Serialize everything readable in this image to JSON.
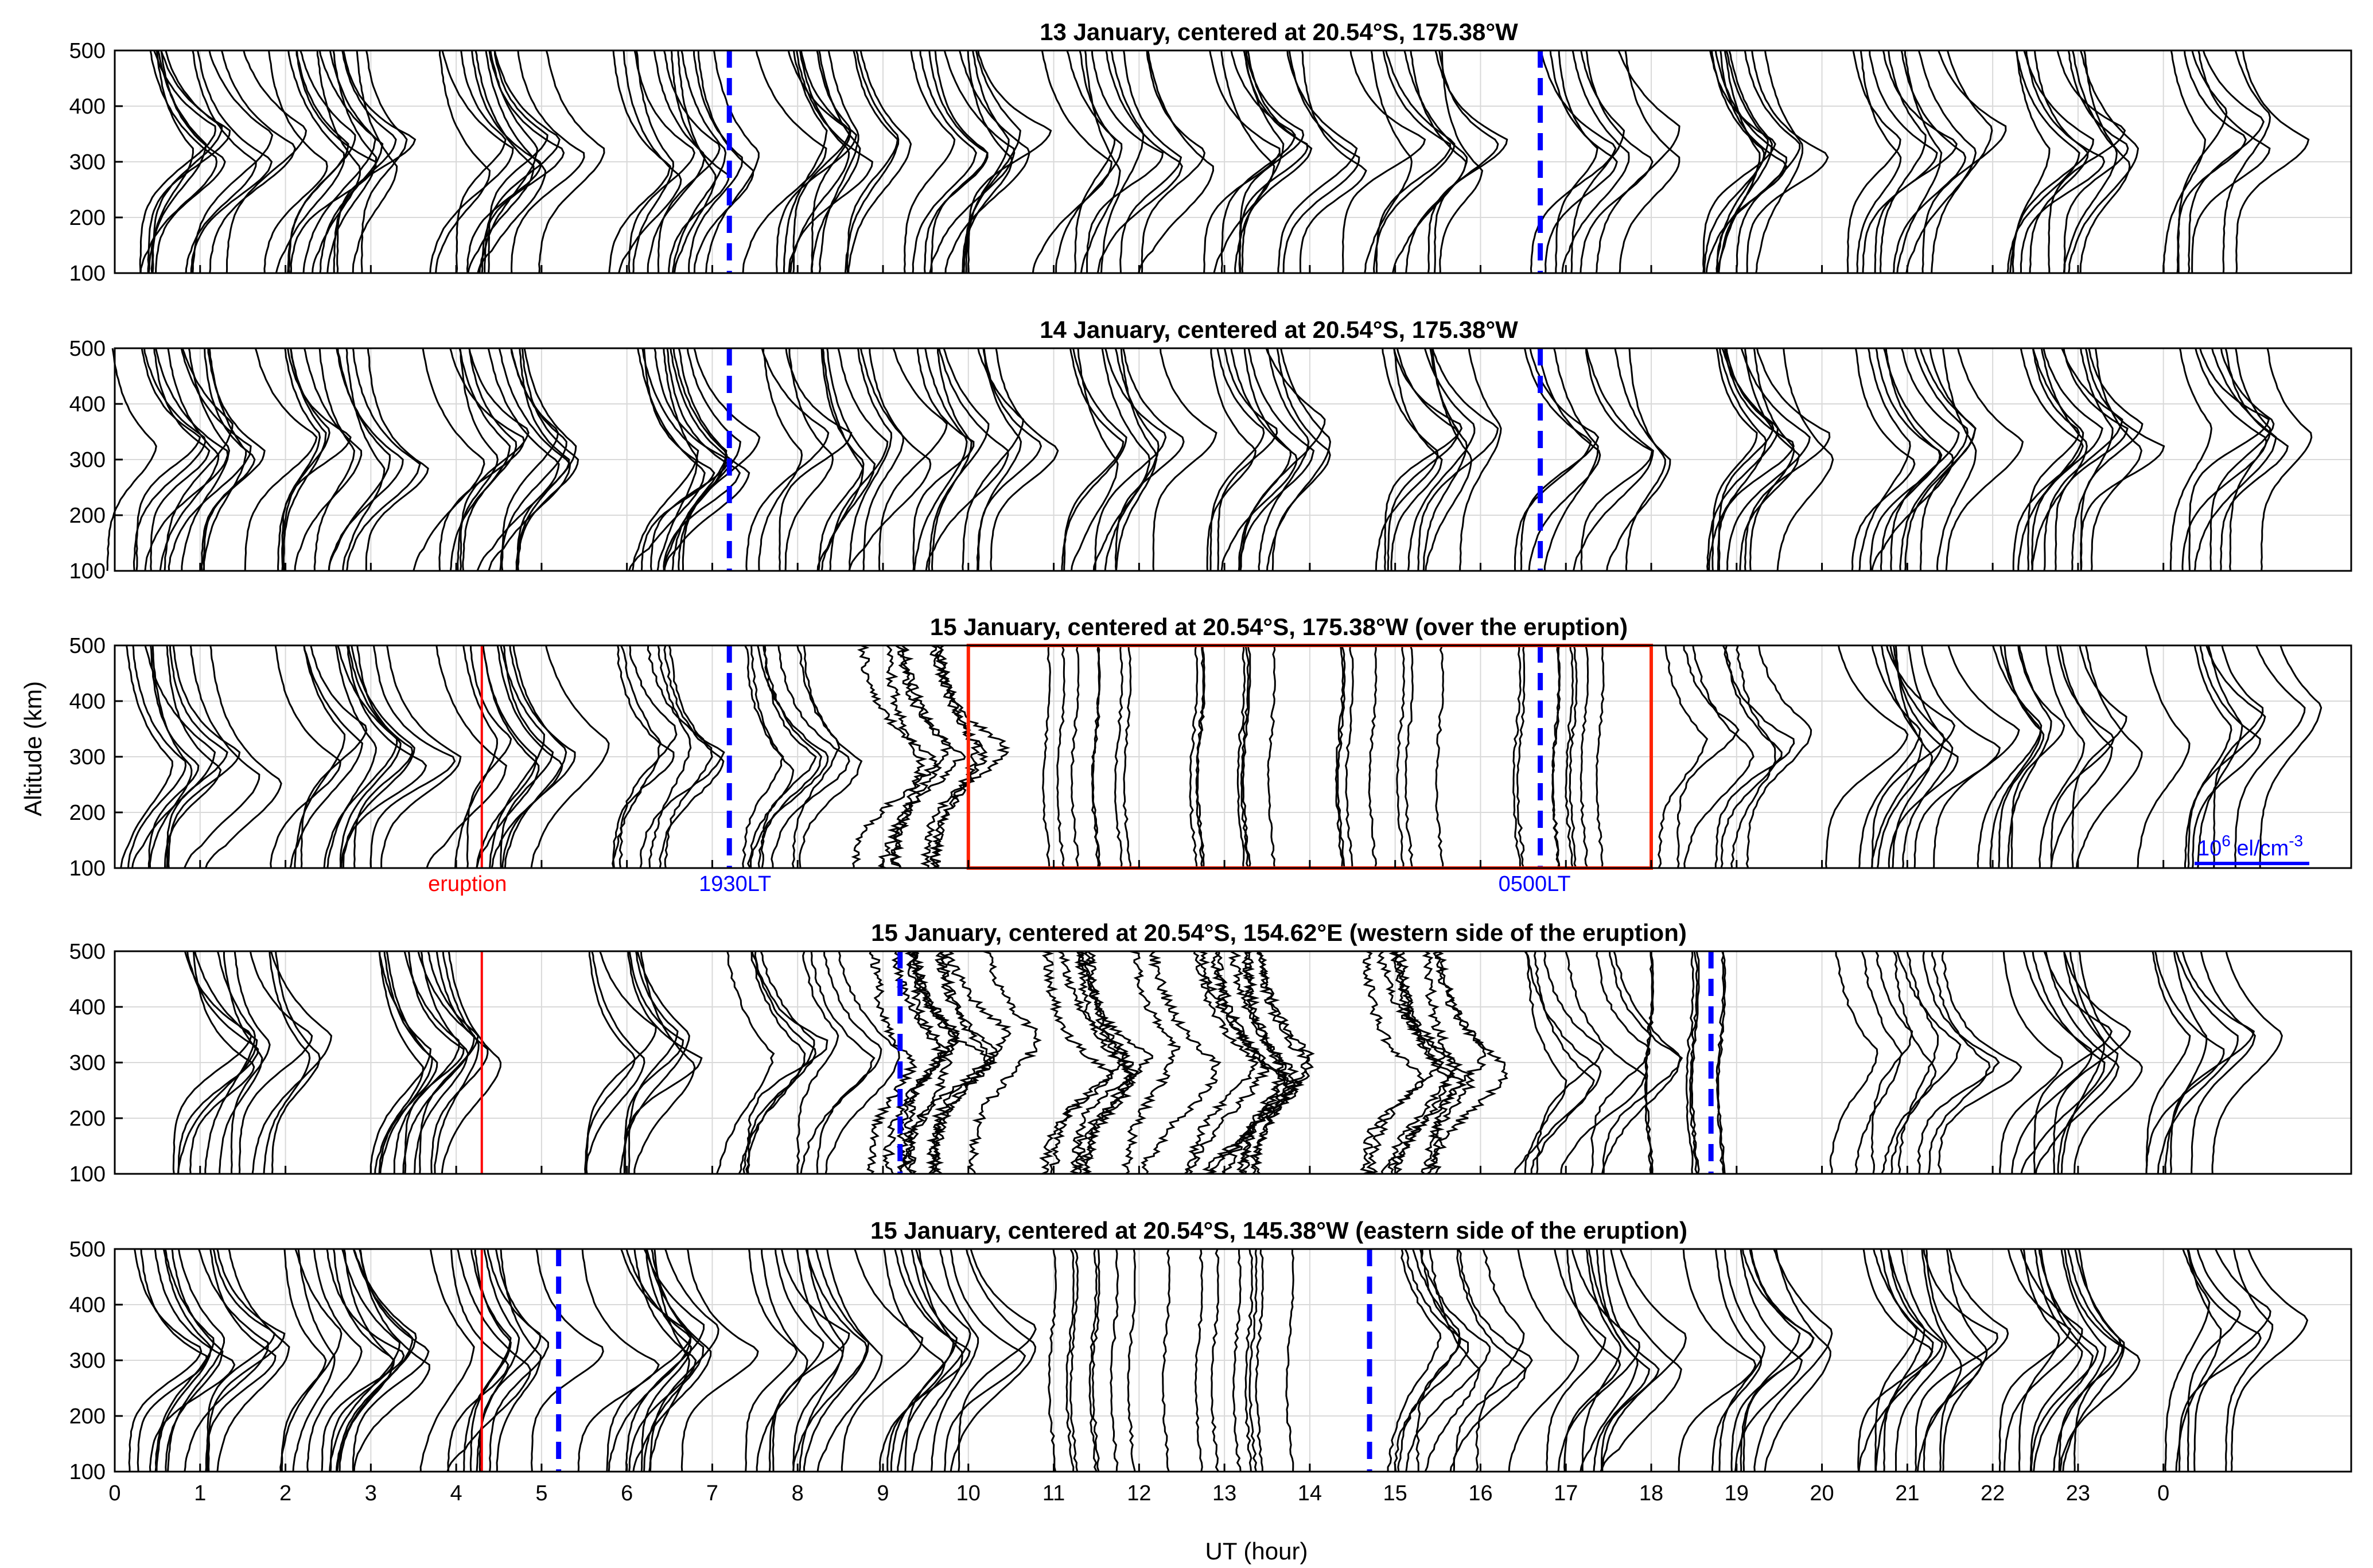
{
  "colors": {
    "profile": "#000000",
    "eruption_line": "#ff0000",
    "localtime_marker": "#0000ff",
    "highlight_box": "#ff2200",
    "grid": "#d9d9d9"
  },
  "chart_data": {
    "type": "line",
    "ylabel": "Altitude (km)",
    "xlabel": "UT (hour)",
    "ylim": [
      100,
      500
    ],
    "xlim": [
      0,
      26.2
    ],
    "yticks": [
      "100",
      "200",
      "300",
      "400",
      "500"
    ],
    "xticks": [
      {
        "x": 0,
        "label": "0"
      },
      {
        "x": 1,
        "label": "1"
      },
      {
        "x": 2,
        "label": "2"
      },
      {
        "x": 3,
        "label": "3"
      },
      {
        "x": 4,
        "label": "4"
      },
      {
        "x": 5,
        "label": "5"
      },
      {
        "x": 6,
        "label": "6"
      },
      {
        "x": 7,
        "label": "7"
      },
      {
        "x": 8,
        "label": "8"
      },
      {
        "x": 9,
        "label": "9"
      },
      {
        "x": 10,
        "label": "10"
      },
      {
        "x": 11,
        "label": "11"
      },
      {
        "x": 12,
        "label": "12"
      },
      {
        "x": 13,
        "label": "13"
      },
      {
        "x": 14,
        "label": "14"
      },
      {
        "x": 15,
        "label": "15"
      },
      {
        "x": 16,
        "label": "16"
      },
      {
        "x": 17,
        "label": "17"
      },
      {
        "x": 18,
        "label": "18"
      },
      {
        "x": 19,
        "label": "19"
      },
      {
        "x": 20,
        "label": "20"
      },
      {
        "x": 21,
        "label": "21"
      },
      {
        "x": 22,
        "label": "22"
      },
      {
        "x": 23,
        "label": "23"
      },
      {
        "x": 24,
        "label": "0"
      }
    ],
    "grid": true,
    "profile_scale_label": {
      "base": "10",
      "exp": "6",
      "rest": " el/cm",
      "unit_exp": "-3"
    },
    "panels": [
      {
        "title": "13 January, centered at 20.54°S, 175.38°W",
        "blue_markers": [
          7.2,
          16.7
        ],
        "groups": [
          {
            "x": 0.1,
            "n": 12,
            "peak": 330
          },
          {
            "x": 1.8,
            "n": 13,
            "peak": 320
          },
          {
            "x": 3.8,
            "n": 12,
            "peak": 320
          },
          {
            "x": 5.9,
            "n": 12,
            "peak": 300
          },
          {
            "x": 7.6,
            "n": 12,
            "peak": 330
          },
          {
            "x": 9.2,
            "n": 10,
            "peak": 330
          },
          {
            "x": 11.0,
            "n": 10,
            "peak": 320
          },
          {
            "x": 12.7,
            "n": 10,
            "peak": 320
          },
          {
            "x": 14.6,
            "n": 9,
            "peak": 310
          },
          {
            "x": 16.6,
            "n": 8,
            "peak": 330
          },
          {
            "x": 18.4,
            "n": 10,
            "peak": 330
          },
          {
            "x": 20.4,
            "n": 10,
            "peak": 340
          },
          {
            "x": 22.2,
            "n": 10,
            "peak": 330
          },
          {
            "x": 24.0,
            "n": 7,
            "peak": 360
          }
        ]
      },
      {
        "title": "14 January, centered at 20.54°S, 175.38°W",
        "blue_markers": [
          7.2,
          16.7
        ],
        "groups": [
          {
            "x": 0.1,
            "n": 12,
            "peak": 340
          },
          {
            "x": 1.8,
            "n": 12,
            "peak": 320
          },
          {
            "x": 3.8,
            "n": 13,
            "peak": 320
          },
          {
            "x": 5.9,
            "n": 11,
            "peak": 310
          },
          {
            "x": 7.6,
            "n": 11,
            "peak": 320
          },
          {
            "x": 9.2,
            "n": 10,
            "peak": 340
          },
          {
            "x": 11.0,
            "n": 9,
            "peak": 330
          },
          {
            "x": 12.7,
            "n": 10,
            "peak": 340
          },
          {
            "x": 14.6,
            "n": 9,
            "peak": 330
          },
          {
            "x": 16.6,
            "n": 8,
            "peak": 330
          },
          {
            "x": 18.4,
            "n": 10,
            "peak": 330
          },
          {
            "x": 20.4,
            "n": 11,
            "peak": 330
          },
          {
            "x": 22.2,
            "n": 11,
            "peak": 340
          },
          {
            "x": 24.0,
            "n": 8,
            "peak": 360
          }
        ]
      },
      {
        "title": "15 January, centered at 20.54°S, 175.38°W (over the eruption)",
        "blue_markers": [
          7.2,
          16.7
        ],
        "eruption": 4.3,
        "box": {
          "x0": 10.0,
          "x1": 18.0
        },
        "labels": {
          "eruption": "eruption",
          "lt_a": "1930LT",
          "lt_b": "0500LT"
        },
        "groups": [
          {
            "x": 0.1,
            "n": 10,
            "peak": 290
          },
          {
            "x": 2.0,
            "n": 12,
            "peak": 320
          },
          {
            "x": 3.9,
            "n": 11,
            "peak": 310
          },
          {
            "x": 5.7,
            "n": 7,
            "peak": 320,
            "kind": "mixed"
          },
          {
            "x": 7.2,
            "n": 8,
            "peak": 300,
            "kind": "mixed"
          },
          {
            "x": 8.8,
            "n": 7,
            "peak": 320,
            "kind": "noisy"
          },
          {
            "x": 10.9,
            "n": 7,
            "peak": 300,
            "kind": "flat"
          },
          {
            "x": 12.6,
            "n": 7,
            "peak": 300,
            "kind": "flat"
          },
          {
            "x": 14.4,
            "n": 7,
            "peak": 300,
            "kind": "flat"
          },
          {
            "x": 16.5,
            "n": 8,
            "peak": 300,
            "kind": "flat"
          },
          {
            "x": 18.2,
            "n": 7,
            "peak": 320,
            "kind": "mixed"
          },
          {
            "x": 20.3,
            "n": 10,
            "peak": 330
          },
          {
            "x": 22.1,
            "n": 10,
            "peak": 340
          },
          {
            "x": 24.0,
            "n": 8,
            "peak": 360
          }
        ]
      },
      {
        "title": "15 January, centered at 20.54°S, 154.62°E (western side of the eruption)",
        "blue_markers": [
          9.2,
          18.7
        ],
        "eruption": 4.3,
        "groups": [
          {
            "x": 0.8,
            "n": 11,
            "peak": 330
          },
          {
            "x": 3.0,
            "n": 12,
            "peak": 320
          },
          {
            "x": 5.4,
            "n": 8,
            "peak": 330
          },
          {
            "x": 7.2,
            "n": 9,
            "peak": 320,
            "kind": "mixed"
          },
          {
            "x": 8.9,
            "n": 10,
            "peak": 330,
            "kind": "noisy"
          },
          {
            "x": 11.0,
            "n": 8,
            "peak": 300,
            "kind": "noisy"
          },
          {
            "x": 12.6,
            "n": 9,
            "peak": 300,
            "kind": "noisy"
          },
          {
            "x": 14.6,
            "n": 8,
            "peak": 300,
            "kind": "noisy"
          },
          {
            "x": 16.5,
            "n": 8,
            "peak": 300,
            "kind": "mixed"
          },
          {
            "x": 18.0,
            "n": 7,
            "peak": 300,
            "kind": "flat"
          },
          {
            "x": 20.3,
            "n": 9,
            "peak": 320,
            "kind": "mixed"
          },
          {
            "x": 22.1,
            "n": 9,
            "peak": 330
          },
          {
            "x": 23.6,
            "n": 7,
            "peak": 350
          }
        ]
      },
      {
        "title": "15 January, centered at 20.54°S, 145.38°W (eastern side of the eruption)",
        "blue_markers": [
          5.2,
          14.7
        ],
        "eruption": 4.3,
        "groups": [
          {
            "x": 0.2,
            "n": 12,
            "peak": 330
          },
          {
            "x": 2.0,
            "n": 12,
            "peak": 320
          },
          {
            "x": 3.8,
            "n": 10,
            "peak": 320
          },
          {
            "x": 5.6,
            "n": 11,
            "peak": 330
          },
          {
            "x": 7.5,
            "n": 10,
            "peak": 320
          },
          {
            "x": 9.0,
            "n": 10,
            "peak": 330
          },
          {
            "x": 11.0,
            "n": 7,
            "peak": 300,
            "kind": "flat"
          },
          {
            "x": 12.6,
            "n": 8,
            "peak": 300,
            "kind": "flat"
          },
          {
            "x": 14.9,
            "n": 9,
            "peak": 320,
            "kind": "mixed"
          },
          {
            "x": 16.6,
            "n": 10,
            "peak": 320
          },
          {
            "x": 18.6,
            "n": 9,
            "peak": 320
          },
          {
            "x": 20.4,
            "n": 11,
            "peak": 330
          },
          {
            "x": 22.1,
            "n": 11,
            "peak": 330
          },
          {
            "x": 23.9,
            "n": 7,
            "peak": 380
          }
        ]
      }
    ]
  }
}
